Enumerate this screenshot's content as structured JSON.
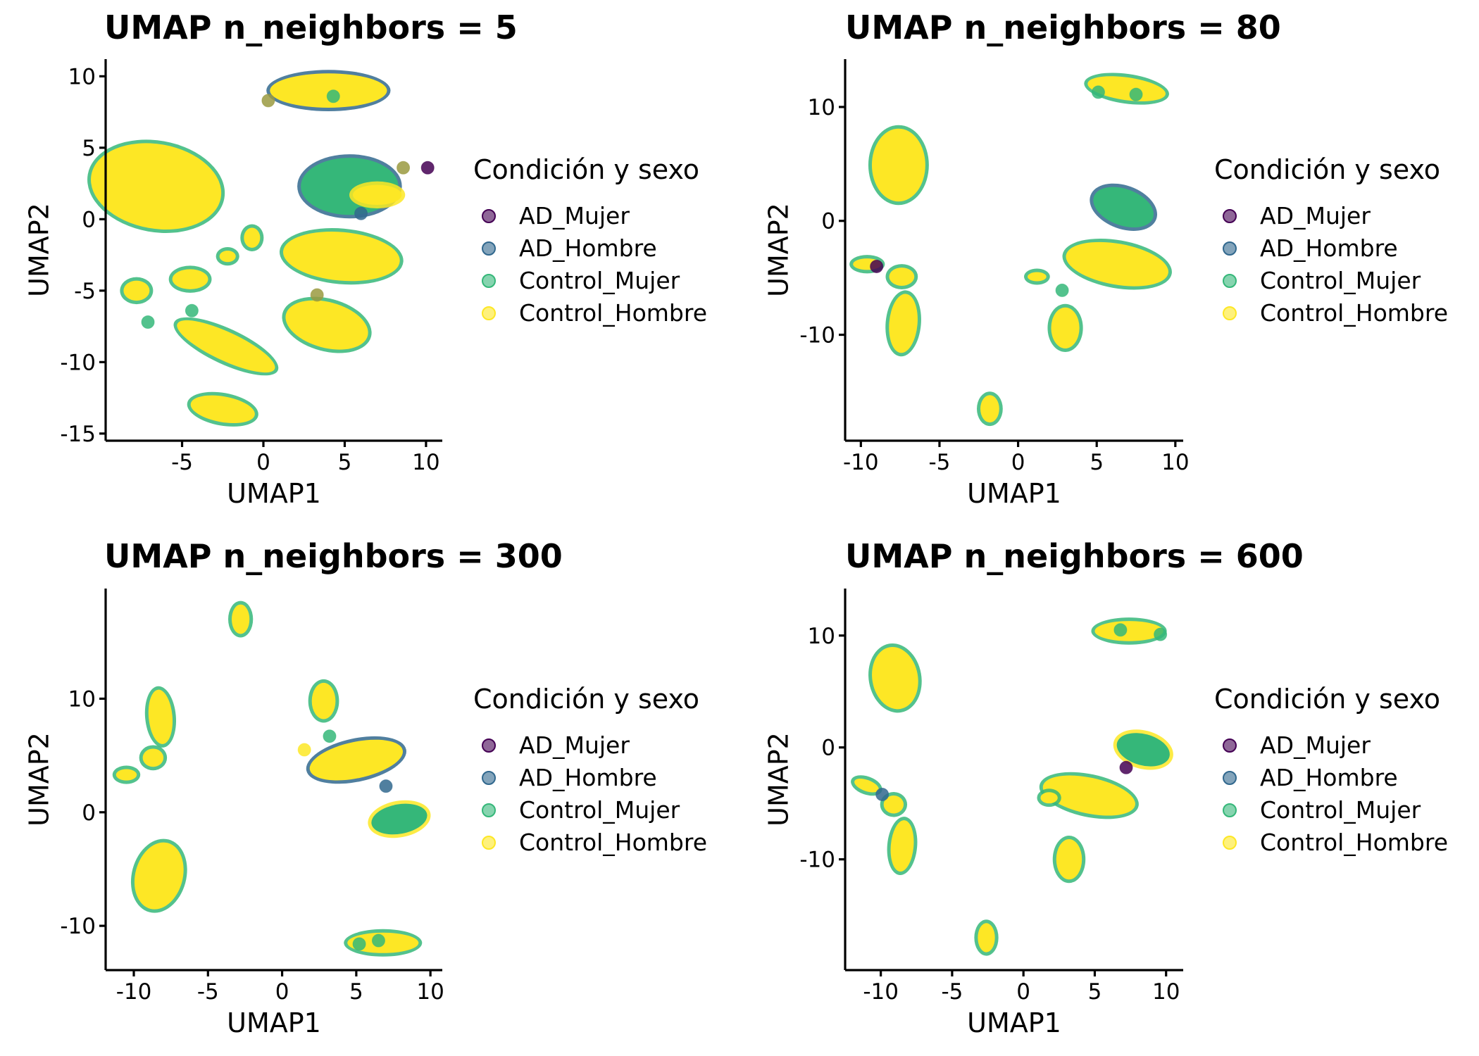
{
  "legend": {
    "title": "Condición y sexo",
    "entries": [
      {
        "label": "AD_Mujer",
        "color": "#440154"
      },
      {
        "label": "AD_Hombre",
        "color": "#31688e"
      },
      {
        "label": "Control_Mujer",
        "color": "#35b779"
      },
      {
        "label": "Control_Hombre",
        "color": "#fde725"
      }
    ]
  },
  "chart_data": [
    {
      "type": "scatter",
      "title": "UMAP n_neighbors = 5",
      "xlabel": "UMAP1",
      "ylabel": "UMAP2",
      "xlim": [
        -9.7,
        11
      ],
      "ylim": [
        -15.5,
        11.2
      ],
      "xticks": [
        -5,
        0,
        5,
        10
      ],
      "yticks": [
        -15,
        -10,
        -5,
        0,
        5,
        10
      ],
      "grid": false,
      "legend_position": "right",
      "clusters": [
        {
          "cx": -6.6,
          "cy": 2.3,
          "rx": 2.6,
          "ry": 4.6,
          "rot": 80,
          "fill": "#fde725",
          "edge": "#35b779"
        },
        {
          "cx": 4.0,
          "cy": 9.0,
          "rx": 3.6,
          "ry": 1.2,
          "rot": 0,
          "fill": "#fde725",
          "edge": "#31688e"
        },
        {
          "cx": 5.3,
          "cy": 2.3,
          "rx": 3.0,
          "ry": 2.0,
          "rot": 0,
          "fill": "#35b779",
          "edge": "#31688e"
        },
        {
          "cx": 7.0,
          "cy": 1.7,
          "rx": 1.5,
          "ry": 0.7,
          "rot": 0,
          "fill": "#fde725",
          "edge": "#fde725"
        },
        {
          "cx": 4.8,
          "cy": -2.6,
          "rx": 3.6,
          "ry": 1.7,
          "rot": -5,
          "fill": "#fde725",
          "edge": "#35b779"
        },
        {
          "cx": 3.9,
          "cy": -7.4,
          "rx": 2.6,
          "ry": 1.6,
          "rot": -15,
          "fill": "#fde725",
          "edge": "#35b779"
        },
        {
          "cx": -2.3,
          "cy": -8.9,
          "rx": 3.3,
          "ry": 1.0,
          "rot": -25,
          "fill": "#fde725",
          "edge": "#35b779"
        },
        {
          "cx": -2.5,
          "cy": -13.3,
          "rx": 2.0,
          "ry": 0.9,
          "rot": -10,
          "fill": "#fde725",
          "edge": "#35b779"
        },
        {
          "cx": -4.5,
          "cy": -4.2,
          "rx": 1.1,
          "ry": 0.7,
          "rot": 0,
          "fill": "#fde725",
          "edge": "#35b779"
        },
        {
          "cx": -7.8,
          "cy": -5.0,
          "rx": 0.8,
          "ry": 0.7,
          "rot": 0,
          "fill": "#fde725",
          "edge": "#35b779"
        },
        {
          "cx": -2.2,
          "cy": -2.6,
          "rx": 0.5,
          "ry": 0.4,
          "rot": 0,
          "fill": "#fde725",
          "edge": "#35b779"
        },
        {
          "cx": -0.7,
          "cy": -1.3,
          "rx": 0.5,
          "ry": 0.7,
          "rot": 0,
          "fill": "#fde725",
          "edge": "#35b779"
        }
      ],
      "points": [
        {
          "x": 10.1,
          "y": 3.6,
          "color": "#440154"
        },
        {
          "x": 8.6,
          "y": 3.6,
          "color": "#9a9a40"
        },
        {
          "x": 0.3,
          "y": 8.3,
          "color": "#9a9a40"
        },
        {
          "x": -7.1,
          "y": -7.2,
          "color": "#35b779"
        },
        {
          "x": 3.3,
          "y": -5.3,
          "color": "#9a9a40"
        },
        {
          "x": 6.0,
          "y": 0.4,
          "color": "#31688e"
        },
        {
          "x": 4.3,
          "y": 8.6,
          "color": "#35b779"
        },
        {
          "x": -4.4,
          "y": -6.4,
          "color": "#35b779"
        }
      ]
    },
    {
      "type": "scatter",
      "title": "UMAP n_neighbors = 80",
      "xlabel": "UMAP1",
      "ylabel": "UMAP2",
      "xlim": [
        -11,
        10.5
      ],
      "ylim": [
        -19.3,
        14.2
      ],
      "xticks": [
        -10,
        -5,
        0,
        5,
        10
      ],
      "yticks": [
        -10,
        0,
        10
      ],
      "grid": false,
      "legend_position": "right",
      "clusters": [
        {
          "cx": 6.9,
          "cy": 11.6,
          "rx": 2.5,
          "ry": 1.0,
          "rot": -8,
          "fill": "#fde725",
          "edge": "#35b779"
        },
        {
          "cx": -7.6,
          "cy": 4.9,
          "rx": 1.7,
          "ry": 3.2,
          "rot": 0,
          "fill": "#fde725",
          "edge": "#35b779"
        },
        {
          "cx": 6.7,
          "cy": 1.2,
          "rx": 2.0,
          "ry": 1.6,
          "rot": -20,
          "fill": "#35b779",
          "edge": "#31688e"
        },
        {
          "cx": 6.3,
          "cy": -3.8,
          "rx": 3.3,
          "ry": 1.8,
          "rot": -10,
          "fill": "#fde725",
          "edge": "#35b779"
        },
        {
          "cx": 3.0,
          "cy": -9.4,
          "rx": 0.9,
          "ry": 1.8,
          "rot": 0,
          "fill": "#fde725",
          "edge": "#35b779"
        },
        {
          "cx": -1.8,
          "cy": -16.5,
          "rx": 0.6,
          "ry": 1.2,
          "rot": 0,
          "fill": "#fde725",
          "edge": "#35b779"
        },
        {
          "cx": -7.3,
          "cy": -9.0,
          "rx": 0.9,
          "ry": 2.6,
          "rot": -5,
          "fill": "#fde725",
          "edge": "#35b779"
        },
        {
          "cx": -7.4,
          "cy": -4.9,
          "rx": 0.8,
          "ry": 0.8,
          "rot": 0,
          "fill": "#fde725",
          "edge": "#35b779"
        },
        {
          "cx": -9.6,
          "cy": -3.8,
          "rx": 0.9,
          "ry": 0.5,
          "rot": 0,
          "fill": "#fde725",
          "edge": "#35b779"
        },
        {
          "cx": 1.2,
          "cy": -4.9,
          "rx": 0.6,
          "ry": 0.4,
          "rot": 0,
          "fill": "#fde725",
          "edge": "#35b779"
        }
      ],
      "points": [
        {
          "x": -9.0,
          "y": -4.0,
          "color": "#440154"
        },
        {
          "x": 5.1,
          "y": 11.3,
          "color": "#35b779"
        },
        {
          "x": 7.5,
          "y": 11.1,
          "color": "#35b779"
        },
        {
          "x": 2.8,
          "y": -6.1,
          "color": "#35b779"
        }
      ]
    },
    {
      "type": "scatter",
      "title": "UMAP n_neighbors = 300",
      "xlabel": "UMAP1",
      "ylabel": "UMAP2",
      "xlim": [
        -11.9,
        10.8
      ],
      "ylim": [
        -13.9,
        19.7
      ],
      "xticks": [
        -10,
        -5,
        0,
        5,
        10
      ],
      "yticks": [
        -10,
        0,
        10
      ],
      "grid": false,
      "legend_position": "right",
      "clusters": [
        {
          "cx": -2.8,
          "cy": 17.0,
          "rx": 0.6,
          "ry": 1.3,
          "rot": 0,
          "fill": "#fde725",
          "edge": "#35b779"
        },
        {
          "cx": 2.8,
          "cy": 9.8,
          "rx": 0.8,
          "ry": 1.6,
          "rot": 0,
          "fill": "#fde725",
          "edge": "#35b779"
        },
        {
          "cx": -8.2,
          "cy": 8.4,
          "rx": 0.8,
          "ry": 2.4,
          "rot": 5,
          "fill": "#fde725",
          "edge": "#35b779"
        },
        {
          "cx": -8.7,
          "cy": 4.8,
          "rx": 0.7,
          "ry": 0.8,
          "rot": 0,
          "fill": "#fde725",
          "edge": "#35b779"
        },
        {
          "cx": -10.5,
          "cy": 3.3,
          "rx": 0.7,
          "ry": 0.5,
          "rot": 0,
          "fill": "#fde725",
          "edge": "#35b779"
        },
        {
          "cx": 5.0,
          "cy": 4.6,
          "rx": 3.2,
          "ry": 1.6,
          "rot": 12,
          "fill": "#fde725",
          "edge": "#31688e"
        },
        {
          "cx": 7.9,
          "cy": -0.6,
          "rx": 1.9,
          "ry": 1.3,
          "rot": 10,
          "fill": "#35b779",
          "edge": "#fde725"
        },
        {
          "cx": -8.3,
          "cy": -5.6,
          "rx": 1.6,
          "ry": 3.0,
          "rot": -15,
          "fill": "#fde725",
          "edge": "#35b779"
        },
        {
          "cx": 6.8,
          "cy": -11.5,
          "rx": 2.4,
          "ry": 0.9,
          "rot": 0,
          "fill": "#fde725",
          "edge": "#35b779"
        }
      ],
      "points": [
        {
          "x": 5.2,
          "y": -11.6,
          "color": "#35b779"
        },
        {
          "x": 6.5,
          "y": -11.3,
          "color": "#35b779"
        },
        {
          "x": 3.2,
          "y": 6.7,
          "color": "#35b779"
        },
        {
          "x": 7.0,
          "y": 2.3,
          "color": "#31688e"
        },
        {
          "x": 1.5,
          "y": 5.5,
          "color": "#fde725"
        }
      ]
    },
    {
      "type": "scatter",
      "title": "UMAP n_neighbors = 600",
      "xlabel": "UMAP1",
      "ylabel": "UMAP2",
      "xlim": [
        -12.5,
        11.2
      ],
      "ylim": [
        -19.9,
        14.2
      ],
      "xticks": [
        -10,
        -5,
        0,
        5,
        10
      ],
      "yticks": [
        -10,
        0,
        10
      ],
      "grid": false,
      "legend_position": "right",
      "clusters": [
        {
          "cx": 7.4,
          "cy": 10.4,
          "rx": 2.4,
          "ry": 0.9,
          "rot": 0,
          "fill": "#fde725",
          "edge": "#35b779"
        },
        {
          "cx": -9.0,
          "cy": 6.2,
          "rx": 1.6,
          "ry": 2.8,
          "rot": 10,
          "fill": "#fde725",
          "edge": "#35b779"
        },
        {
          "cx": 8.4,
          "cy": -0.2,
          "rx": 1.9,
          "ry": 1.4,
          "rot": -15,
          "fill": "#35b779",
          "edge": "#fde725"
        },
        {
          "cx": 4.6,
          "cy": -4.3,
          "rx": 3.3,
          "ry": 1.6,
          "rot": -12,
          "fill": "#fde725",
          "edge": "#35b779"
        },
        {
          "cx": 3.2,
          "cy": -10.0,
          "rx": 0.9,
          "ry": 1.8,
          "rot": 0,
          "fill": "#fde725",
          "edge": "#35b779"
        },
        {
          "cx": -2.6,
          "cy": -17.0,
          "rx": 0.6,
          "ry": 1.3,
          "rot": 0,
          "fill": "#fde725",
          "edge": "#35b779"
        },
        {
          "cx": -8.5,
          "cy": -8.8,
          "rx": 0.8,
          "ry": 2.3,
          "rot": -5,
          "fill": "#fde725",
          "edge": "#35b779"
        },
        {
          "cx": -9.1,
          "cy": -5.1,
          "rx": 0.7,
          "ry": 0.8,
          "rot": 0,
          "fill": "#fde725",
          "edge": "#35b779"
        },
        {
          "cx": -11.0,
          "cy": -3.4,
          "rx": 0.9,
          "ry": 0.5,
          "rot": -20,
          "fill": "#fde725",
          "edge": "#35b779"
        },
        {
          "cx": 1.8,
          "cy": -4.5,
          "rx": 0.6,
          "ry": 0.5,
          "rot": 0,
          "fill": "#fde725",
          "edge": "#35b779"
        }
      ],
      "points": [
        {
          "x": 7.2,
          "y": -1.8,
          "color": "#440154"
        },
        {
          "x": 6.8,
          "y": 10.5,
          "color": "#35b779"
        },
        {
          "x": 9.6,
          "y": 10.1,
          "color": "#35b779"
        },
        {
          "x": -9.9,
          "y": -4.2,
          "color": "#31688e"
        }
      ]
    }
  ]
}
